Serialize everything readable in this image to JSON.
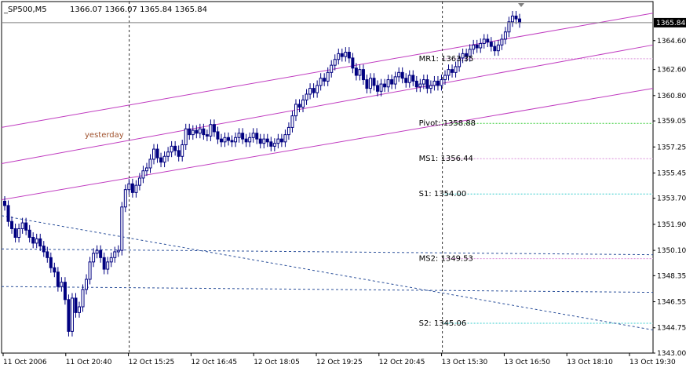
{
  "header": {
    "symbol": "_SP500,M5",
    "ohlc": "1366.07 1366.07 1365.84 1365.84"
  },
  "current_price_label": "1365.84",
  "chart_data": {
    "type": "candlestick",
    "timeframe": "M5",
    "ylim": [
      1343.0,
      1367.3
    ],
    "y_ticks": [
      "1364.60",
      "1362.60",
      "1360.80",
      "1359.05",
      "1357.25",
      "1355.45",
      "1353.70",
      "1351.90",
      "1350.10",
      "1348.35",
      "1346.55",
      "1344.75",
      "1343.00"
    ],
    "x_ticks": [
      "11 Oct 2006",
      "11 Oct 20:40",
      "12 Oct 15:25",
      "12 Oct 16:45",
      "12 Oct 18:05",
      "12 Oct 19:25",
      "12 Oct 20:45",
      "13 Oct 15:30",
      "13 Oct 16:50",
      "13 Oct 18:10",
      "13 Oct 19:30"
    ],
    "session_separators": [
      "12 Oct 15:25",
      "13 Oct 15:30"
    ],
    "levels": [
      {
        "label": "MR1: 1363.35",
        "value": 1363.35,
        "color": "#d98cd9"
      },
      {
        "label": "Pivot: 1358.88",
        "value": 1358.88,
        "color": "#33cc33"
      },
      {
        "label": "MS1: 1356.44",
        "value": 1356.44,
        "color": "#d98cd9"
      },
      {
        "label": "S1: 1354.00",
        "value": 1354.0,
        "color": "#33cccc"
      },
      {
        "label": "MS2: 1349.53",
        "value": 1349.53,
        "color": "#d98cd9"
      },
      {
        "label": "S2: 1345.06",
        "value": 1345.06,
        "color": "#33cccc"
      }
    ],
    "session_label": "yesterday",
    "current_price": 1365.84,
    "channel_lines": {
      "color": "#c03cc0",
      "lines": [
        {
          "start": 1358.6,
          "end": 1366.5
        },
        {
          "start": 1356.1,
          "end": 1364.3
        },
        {
          "start": 1353.6,
          "end": 1361.3
        }
      ]
    },
    "trend_lines": {
      "color": "#2a4f9a",
      "lines": [
        {
          "start": 1352.5,
          "end": 1344.6
        },
        {
          "start": 1350.2,
          "end": 1349.8
        },
        {
          "start": 1347.6,
          "end": 1347.2
        }
      ]
    },
    "close_series": [
      1353.2,
      1352.1,
      1351.6,
      1351.0,
      1351.6,
      1352.0,
      1351.5,
      1351.0,
      1350.6,
      1350.9,
      1350.4,
      1350.0,
      1349.6,
      1348.9,
      1348.6,
      1347.6,
      1347.9,
      1346.7,
      1344.5,
      1346.8,
      1345.8,
      1346.2,
      1347.4,
      1348.1,
      1349.3,
      1349.9,
      1350.1,
      1349.6,
      1348.8,
      1349.3,
      1349.6,
      1350.0,
      1350.1,
      1353.1,
      1354.3,
      1354.7,
      1354.1,
      1354.6,
      1355.1,
      1355.6,
      1355.8,
      1356.4,
      1357.1,
      1356.5,
      1356.2,
      1356.6,
      1356.9,
      1357.3,
      1357.0,
      1356.6,
      1357.4,
      1358.5,
      1358.1,
      1358.4,
      1358.2,
      1358.5,
      1358.1,
      1358.0,
      1358.8,
      1358.3,
      1357.8,
      1357.6,
      1357.9,
      1357.7,
      1357.6,
      1357.9,
      1358.2,
      1357.8,
      1357.6,
      1357.9,
      1358.2,
      1357.8,
      1357.5,
      1357.8,
      1357.6,
      1357.3,
      1357.5,
      1357.8,
      1357.6,
      1358.1,
      1358.6,
      1359.4,
      1360.2,
      1360.0,
      1360.5,
      1360.9,
      1361.3,
      1361.0,
      1361.5,
      1362.0,
      1361.8,
      1362.4,
      1362.9,
      1363.3,
      1363.7,
      1363.5,
      1363.8,
      1363.4,
      1362.7,
      1362.2,
      1362.6,
      1361.9,
      1361.3,
      1362.0,
      1361.5,
      1361.1,
      1361.6,
      1361.4,
      1361.9,
      1361.6,
      1362.1,
      1362.4,
      1362.0,
      1361.7,
      1362.2,
      1361.8,
      1361.4,
      1361.6,
      1361.9,
      1361.3,
      1361.5,
      1361.8,
      1361.5,
      1361.9,
      1362.2,
      1362.6,
      1362.4,
      1362.8,
      1363.4,
      1363.7,
      1363.5,
      1364.0,
      1364.3,
      1364.1,
      1364.4,
      1364.7,
      1364.5,
      1364.2,
      1363.9,
      1364.3,
      1364.7,
      1365.2,
      1365.9,
      1366.3,
      1366.1,
      1365.84
    ],
    "x_range_bars": 155
  }
}
